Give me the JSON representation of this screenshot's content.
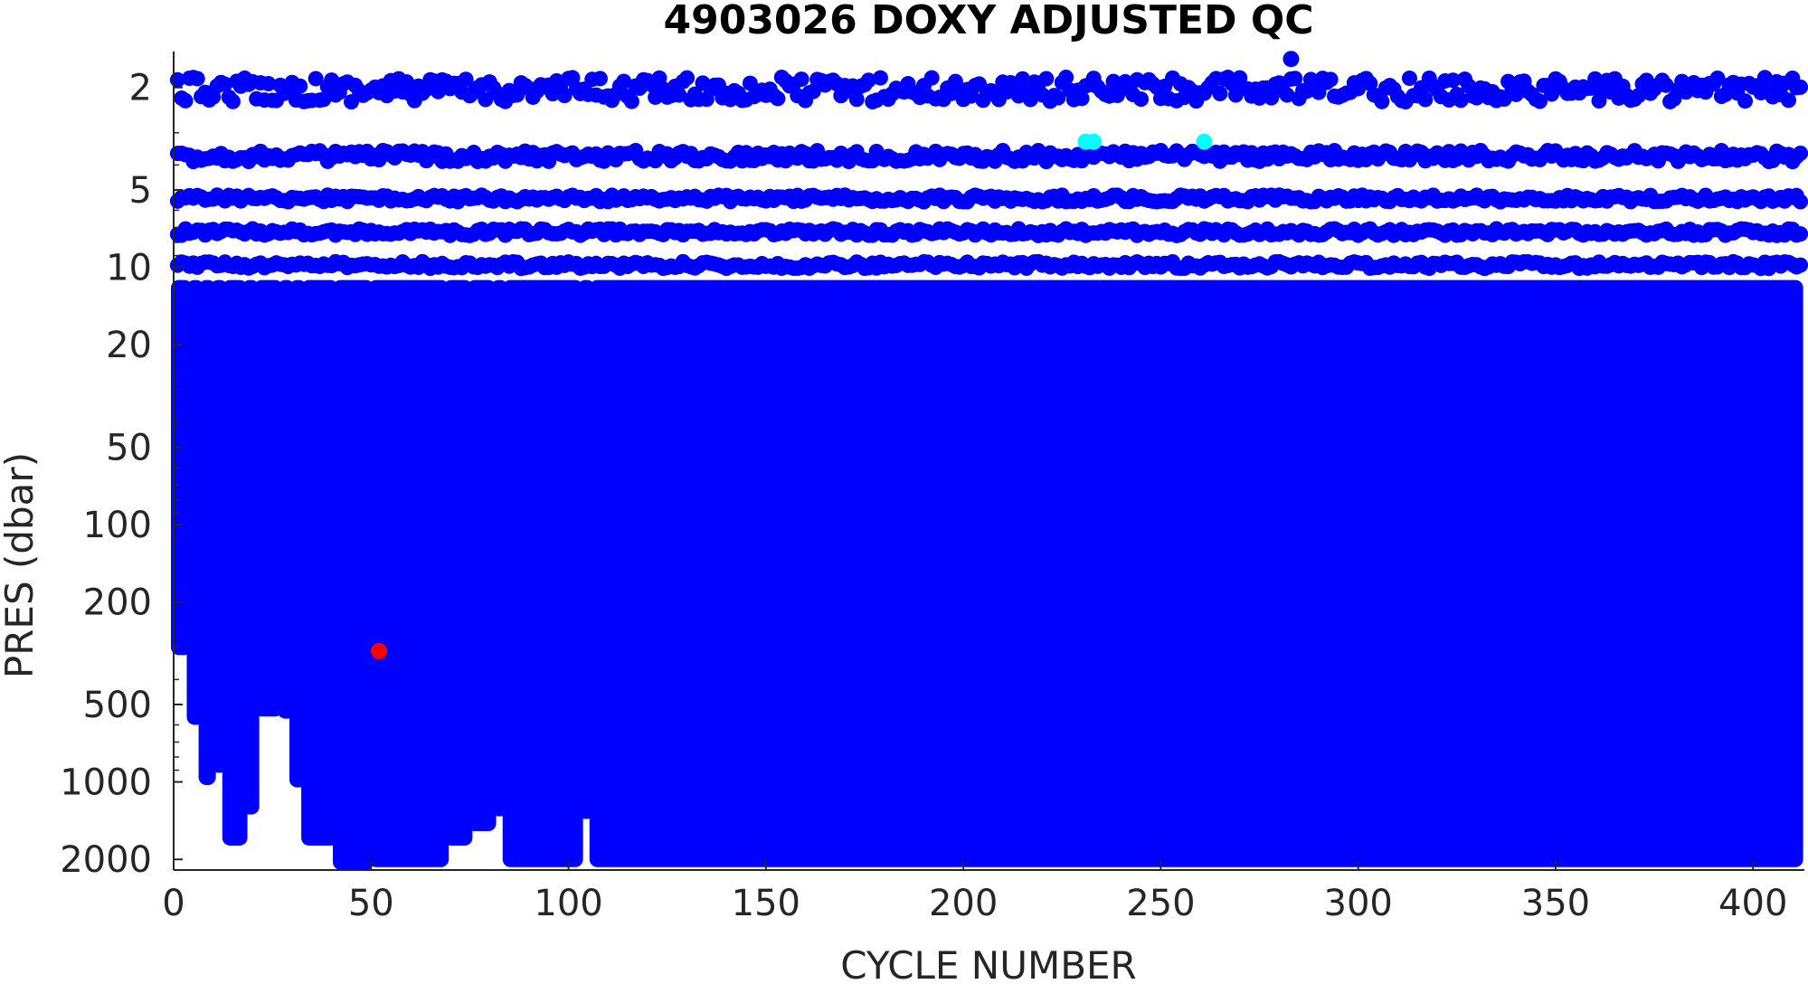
{
  "chart_data": {
    "type": "scatter",
    "title": "4903026  DOXY ADJUSTED QC",
    "xlabel": "CYCLE NUMBER",
    "ylabel": "PRES (dbar)",
    "xlim": [
      0,
      413
    ],
    "ylim": [
      1.45,
      2200
    ],
    "y_scale": "log",
    "y_reversed": true,
    "grid": false,
    "legend": "none",
    "x_ticks": [
      0,
      50,
      100,
      150,
      200,
      250,
      300,
      350,
      400
    ],
    "y_ticks": [
      2,
      5,
      10,
      20,
      50,
      100,
      200,
      500,
      1000,
      2000
    ],
    "colors": {
      "qc_good": "#0000ff",
      "qc_probably_good": "#00ffff",
      "qc_bad": "#ff0000"
    },
    "series": [
      {
        "color": "#0000ff",
        "description_of_shape": "dense profiles every cycle",
        "surface_levels_dbar": [
          2.05,
          3.7,
          5.4,
          7.3,
          9.8
        ],
        "dense_from_dbar": 12,
        "max_depth_by_cycle_range": [
          {
            "from": 0,
            "to": 4,
            "depth": 300
          },
          {
            "from": 4,
            "to": 7,
            "depth": 560
          },
          {
            "from": 7,
            "to": 10,
            "depth": 960
          },
          {
            "from": 10,
            "to": 13,
            "depth": 860
          },
          {
            "from": 13,
            "to": 18,
            "depth": 1650
          },
          {
            "from": 18,
            "to": 21,
            "depth": 1250
          },
          {
            "from": 21,
            "to": 27,
            "depth": 520
          },
          {
            "from": 27,
            "to": 30,
            "depth": 530
          },
          {
            "from": 30,
            "to": 33,
            "depth": 980
          },
          {
            "from": 33,
            "to": 41,
            "depth": 1650
          },
          {
            "from": 41,
            "to": 50,
            "depth": 2050
          },
          {
            "from": 50,
            "to": 69,
            "depth": 2000
          },
          {
            "from": 69,
            "to": 75,
            "depth": 1650
          },
          {
            "from": 75,
            "to": 81,
            "depth": 1450
          },
          {
            "from": 81,
            "to": 84,
            "depth": 1270
          },
          {
            "from": 84,
            "to": 103,
            "depth": 2000
          },
          {
            "from": 103,
            "to": 106,
            "depth": 1300
          },
          {
            "from": 106,
            "to": 412,
            "depth": 2000
          }
        ]
      },
      {
        "color": "#00ffff",
        "points": [
          [
            231,
            3.25
          ],
          [
            233,
            3.25
          ],
          [
            261,
            3.25
          ]
        ]
      },
      {
        "color": "#ff0000",
        "points": [
          [
            52,
            310
          ]
        ]
      },
      {
        "color": "#0000ff",
        "points": [
          [
            283,
            1.55
          ]
        ]
      }
    ]
  }
}
